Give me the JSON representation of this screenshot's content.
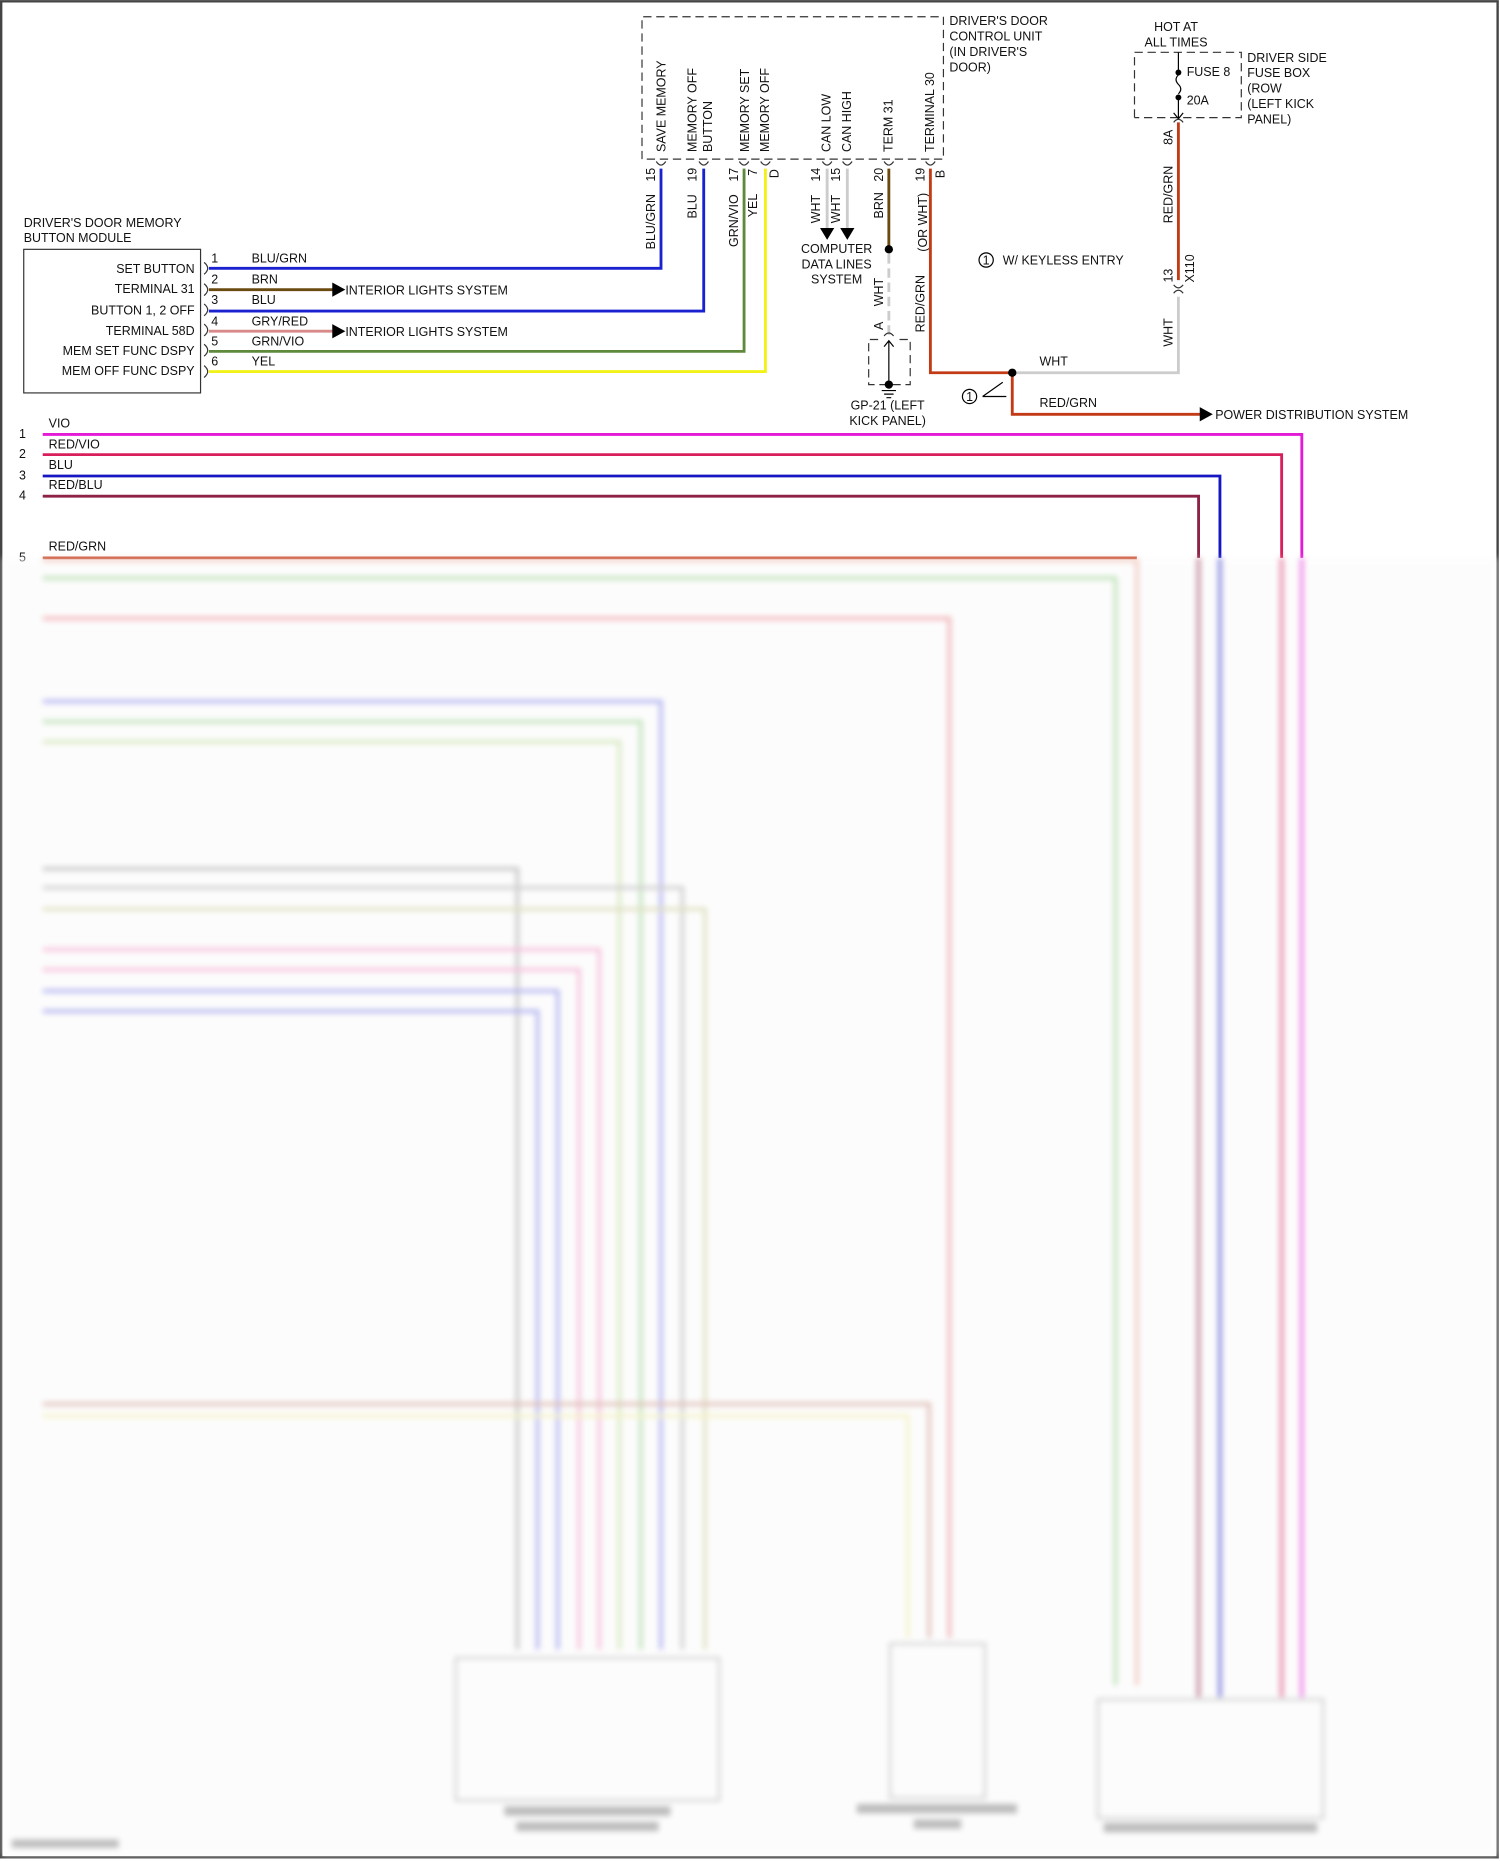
{
  "door_control_unit": {
    "title": [
      "DRIVER'S DOOR",
      "CONTROL UNIT",
      "(IN DRIVER'S",
      "DOOR)"
    ],
    "pins": [
      {
        "label": "SAVE MEMORY",
        "pin": "15",
        "wire": "BLU/GRN"
      },
      {
        "label": [
          "MEMORY OFF",
          "BUTTON"
        ],
        "pin": "19",
        "wire": "BLU"
      },
      {
        "label": "MEMORY SET",
        "pin": "17",
        "wire": "GRN/VIO"
      },
      {
        "label": "MEMORY OFF",
        "pin": "7",
        "conn": "D",
        "wire": "YEL"
      },
      {
        "label": "CAN LOW",
        "pin": "14",
        "wire": "WHT"
      },
      {
        "label": "CAN HIGH",
        "pin": "15",
        "wire": "WHT"
      },
      {
        "label": "TERM 31",
        "pin": "20",
        "wire": "BRN"
      },
      {
        "label": "TERMINAL 30",
        "pin": "19",
        "conn": "B",
        "wire": "(OR WHT)",
        "wire2": "RED/GRN"
      }
    ]
  },
  "memory_module": {
    "title": [
      "DRIVER'S DOOR MEMORY",
      "BUTTON MODULE"
    ],
    "pins": [
      {
        "label": "SET BUTTON",
        "pin": "1",
        "wire": "BLU/GRN"
      },
      {
        "label": "TERMINAL 31",
        "pin": "2",
        "wire": "BRN"
      },
      {
        "label": "BUTTON 1, 2 OFF",
        "pin": "3",
        "wire": "BLU"
      },
      {
        "label": "TERMINAL 58D",
        "pin": "4",
        "wire": "GRY/RED"
      },
      {
        "label": "MEM SET FUNC DSPY",
        "pin": "5",
        "wire": "GRN/VIO"
      },
      {
        "label": "MEM OFF FUNC DSPY",
        "pin": "6",
        "wire": "YEL"
      }
    ],
    "interior_lights": "INTERIOR LIGHTS SYSTEM"
  },
  "computer_data_lines": [
    "COMPUTER",
    "DATA LINES",
    "SYSTEM"
  ],
  "ground": {
    "wire": "WHT",
    "conn": "A",
    "label": [
      "GP-21 (LEFT",
      "KICK PANEL)"
    ]
  },
  "fuse_box": {
    "hot": [
      "HOT AT",
      "ALL TIMES"
    ],
    "fuse": "FUSE 8",
    "rating": "20A",
    "title": [
      "DRIVER SIDE",
      "FUSE BOX",
      "(ROW",
      "(LEFT KICK",
      "PANEL)"
    ],
    "pin": "8A",
    "wire": "RED/GRN",
    "connector_pin": "13",
    "connector": "X110",
    "wire_below": "WHT"
  },
  "keyless": {
    "symbol": "1",
    "note": "W/ KEYLESS ENTRY"
  },
  "splice": {
    "wht": "WHT",
    "red_grn": "RED/GRN",
    "destination": "POWER DISTRIBUTION SYSTEM"
  },
  "harness_lines": [
    {
      "num": "1",
      "wire": "VIO",
      "color": "#e31ad6"
    },
    {
      "num": "2",
      "wire": "RED/VIO",
      "color": "#d81e5b"
    },
    {
      "num": "3",
      "wire": "BLU",
      "color": "#1616c4"
    },
    {
      "num": "4",
      "wire": "RED/BLU",
      "color": "#8e2246"
    },
    {
      "num": "5",
      "wire": "RED/GRN",
      "color": "#c8583a"
    }
  ],
  "colors": {
    "blu": "#1a22d0",
    "brn": "#6b4a10",
    "grn_vio": "#5f8a3c",
    "yel": "#f2f21a",
    "gry_red": "#d88a8a",
    "red_grn": "#c23a16",
    "wht": "#cccccc"
  }
}
